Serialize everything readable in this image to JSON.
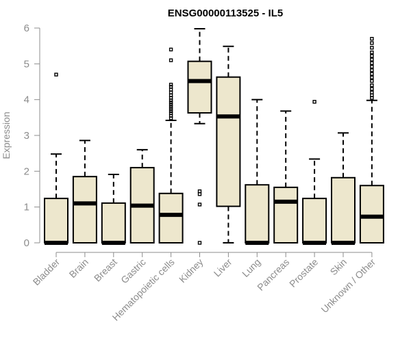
{
  "chart_data": {
    "type": "boxplot",
    "title": "ENSG00000113525 - IL5",
    "xlabel": "",
    "ylabel": "Expression",
    "ylim": [
      0,
      6
    ],
    "yticks": [
      0,
      1,
      2,
      3,
      4,
      5,
      6
    ],
    "grid": false,
    "box_color": "#ede7cd",
    "categories": [
      "Bladder",
      "Brain",
      "Breast",
      "Gastric",
      "Hematopoietic cells",
      "Kidney",
      "Liver",
      "Lung",
      "Pancreas",
      "Prostate",
      "Skin",
      "Unknown / Other"
    ],
    "boxes": [
      {
        "category": "Bladder",
        "min": 0,
        "q1": 0,
        "median": 0,
        "q3": 1.24,
        "max": 2.48,
        "outliers": [
          4.7
        ]
      },
      {
        "category": "Brain",
        "min": 0,
        "q1": 0,
        "median": 1.1,
        "q3": 1.85,
        "max": 2.86,
        "outliers": []
      },
      {
        "category": "Breast",
        "min": 0,
        "q1": 0,
        "median": 0,
        "q3": 1.11,
        "max": 1.91,
        "outliers": []
      },
      {
        "category": "Gastric",
        "min": 0,
        "q1": 0,
        "median": 1.04,
        "q3": 2.1,
        "max": 2.6,
        "outliers": []
      },
      {
        "category": "Hematopoietic cells",
        "min": 0,
        "q1": 0,
        "median": 0.78,
        "q3": 1.38,
        "max": 3.42,
        "outliers": [
          3.48,
          3.55,
          3.62,
          3.68,
          3.74,
          3.8,
          3.86,
          3.92,
          3.98,
          4.05,
          4.12,
          4.2,
          4.28,
          4.36,
          4.42,
          5.1,
          5.4
        ]
      },
      {
        "category": "Kidney",
        "min": 3.33,
        "q1": 3.63,
        "median": 4.52,
        "q3": 5.07,
        "max": 5.98,
        "outliers": [
          0,
          1.07,
          1.36,
          1.44
        ]
      },
      {
        "category": "Liver",
        "min": 0,
        "q1": 1.02,
        "median": 3.53,
        "q3": 4.63,
        "max": 5.49,
        "outliers": []
      },
      {
        "category": "Lung",
        "min": 0,
        "q1": 0,
        "median": 0,
        "q3": 1.62,
        "max": 4.0,
        "outliers": []
      },
      {
        "category": "Pancreas",
        "min": 0,
        "q1": 0,
        "median": 1.15,
        "q3": 1.55,
        "max": 3.68,
        "outliers": []
      },
      {
        "category": "Prostate",
        "min": 0,
        "q1": 0,
        "median": 0,
        "q3": 1.24,
        "max": 2.34,
        "outliers": [
          3.94
        ]
      },
      {
        "category": "Skin",
        "min": 0,
        "q1": 0,
        "median": 0,
        "q3": 1.82,
        "max": 3.07,
        "outliers": []
      },
      {
        "category": "Unknown / Other",
        "min": 0,
        "q1": 0,
        "median": 0.73,
        "q3": 1.6,
        "max": 3.98,
        "outliers": [
          4.05,
          4.12,
          4.2,
          4.3,
          4.4,
          4.52,
          4.62,
          4.72,
          4.82,
          4.92,
          5.02,
          5.12,
          5.22,
          5.32,
          5.45,
          5.58,
          5.7
        ]
      }
    ]
  }
}
